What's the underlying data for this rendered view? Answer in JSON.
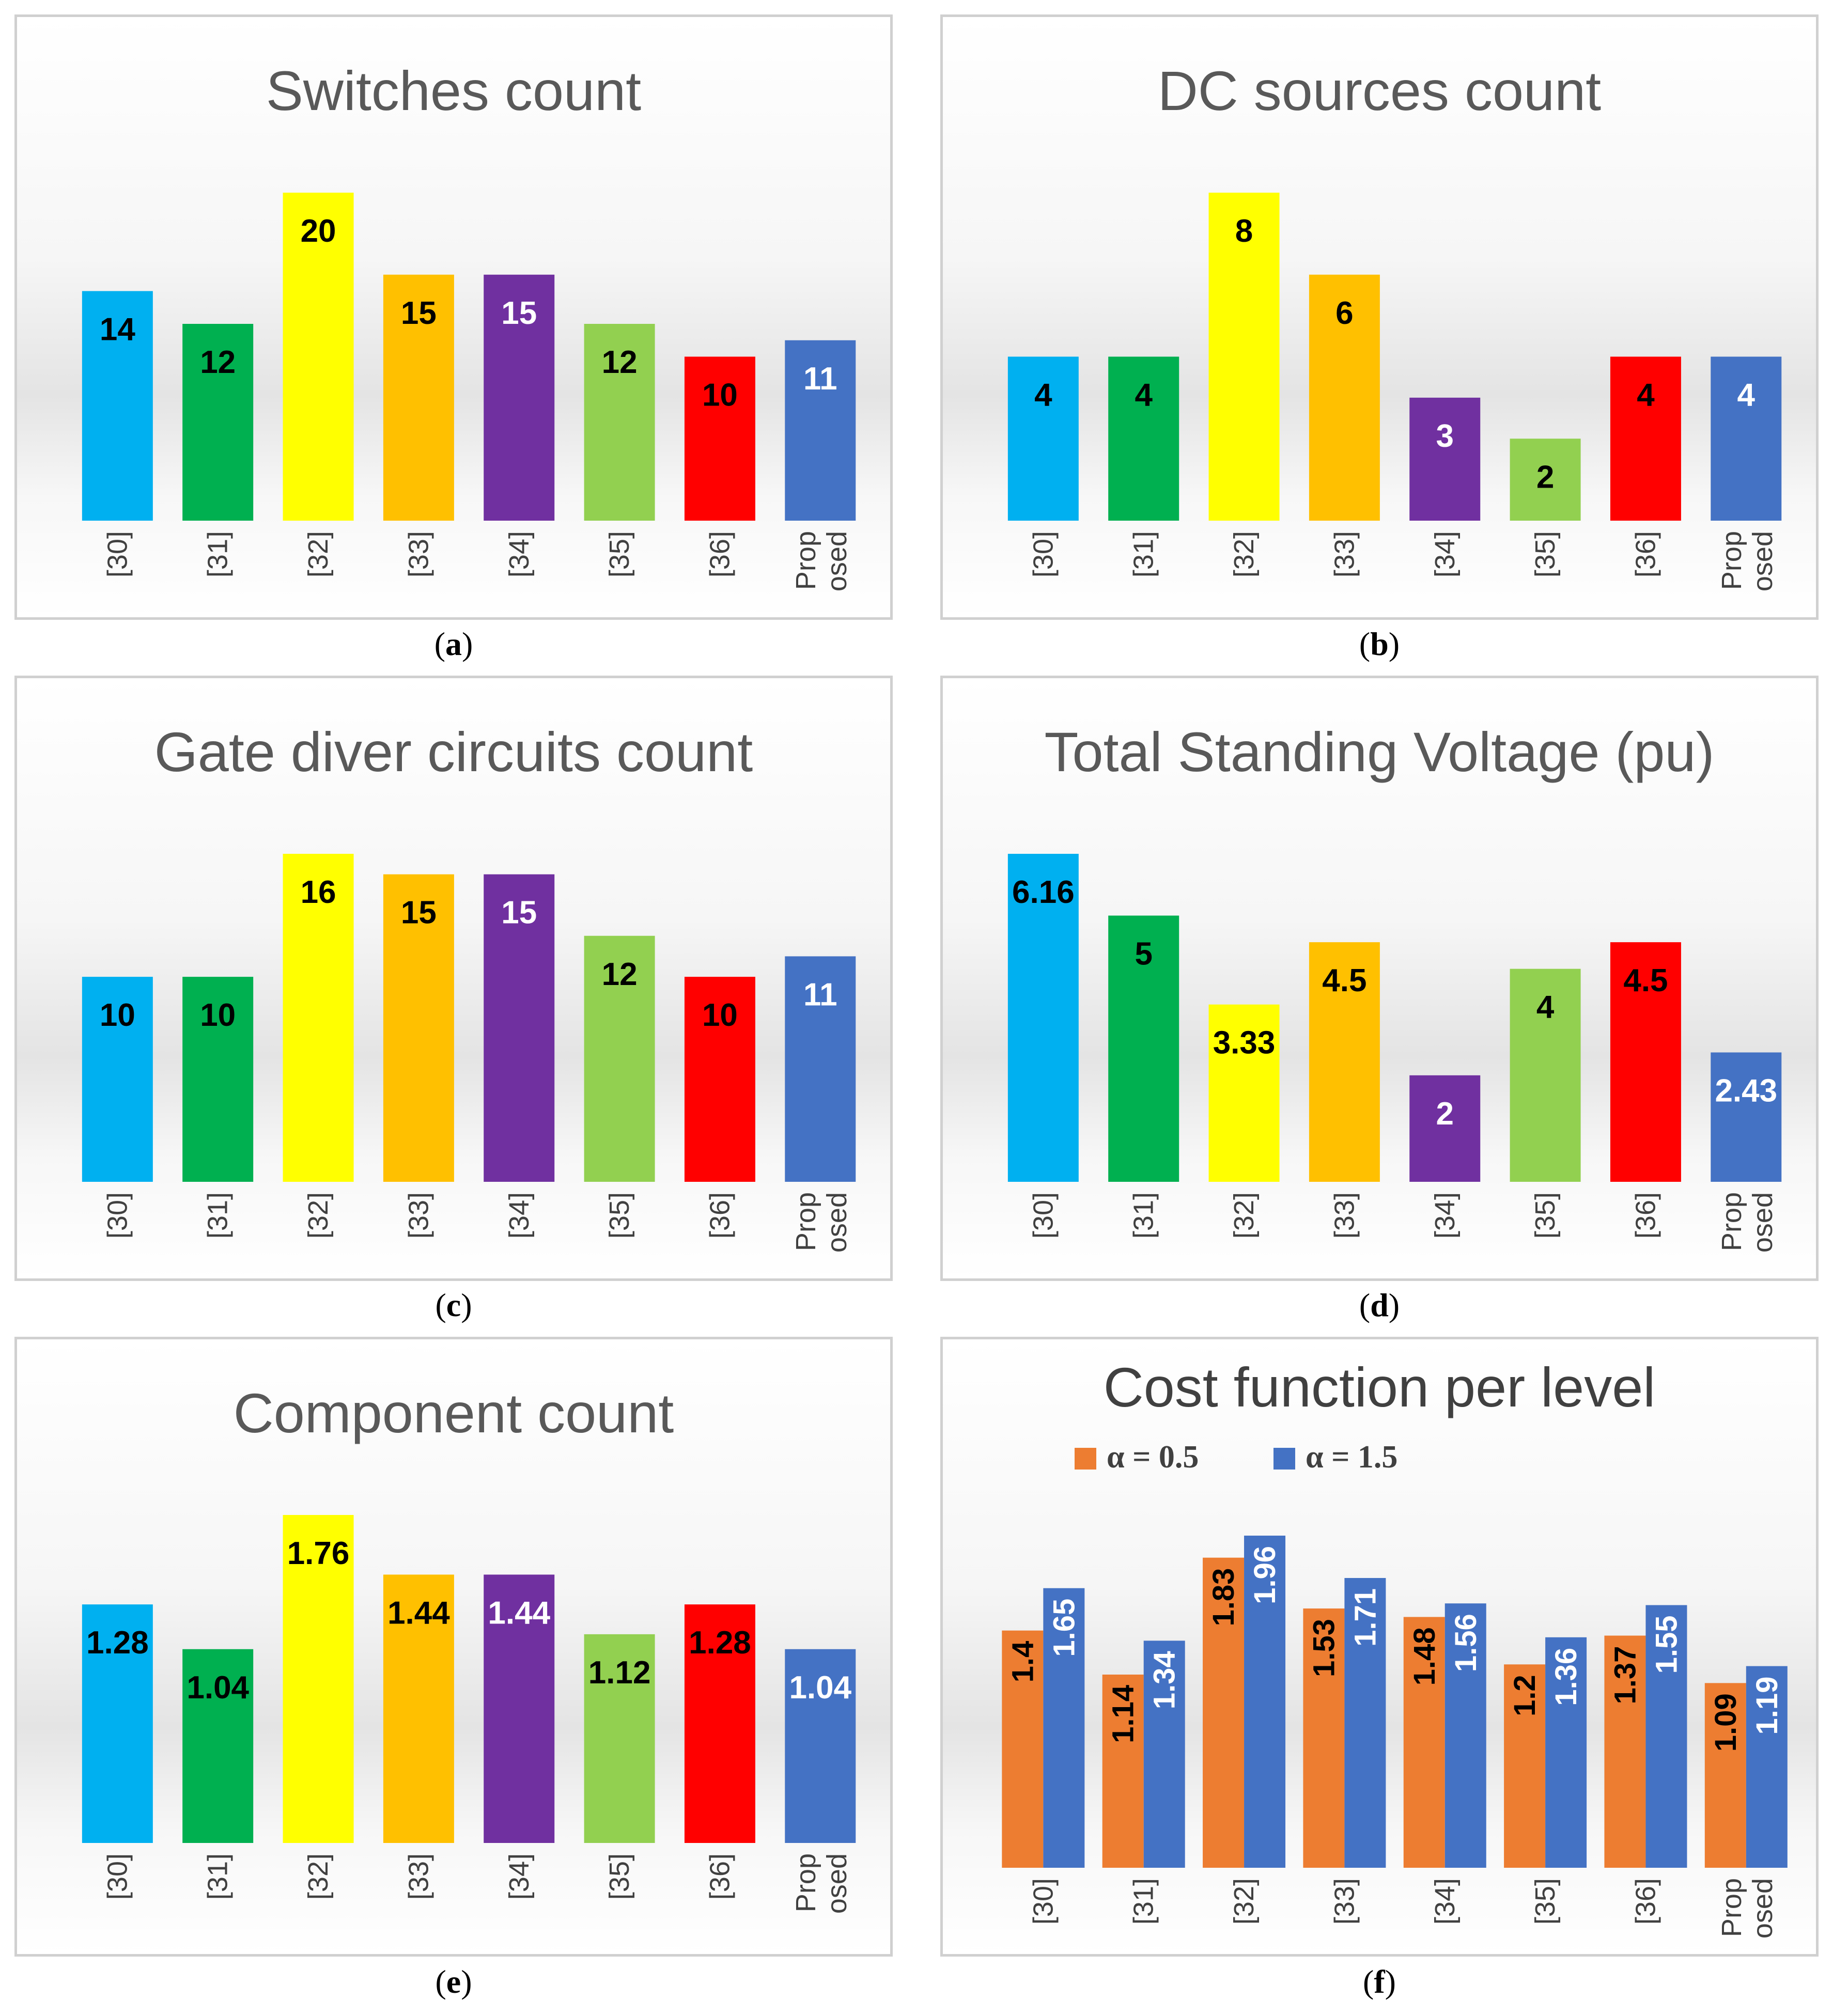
{
  "categories": [
    "[30]",
    "[31]",
    "[32]",
    "[33]",
    "[34]",
    "[35]",
    "[36]",
    "Prop osed"
  ],
  "colors": [
    "#00b0f0",
    "#00b050",
    "#ffff00",
    "#ffc000",
    "#7030a0",
    "#92d050",
    "#ff0000",
    "#4472c4"
  ],
  "chart_data": [
    {
      "id": "a",
      "type": "bar",
      "title": "Switches count",
      "caption": "a",
      "categories": [
        "[30]",
        "[31]",
        "[32]",
        "[33]",
        "[34]",
        "[35]",
        "[36]",
        "Prop osed"
      ],
      "values": [
        14,
        12,
        20,
        15,
        15,
        12,
        10,
        11
      ],
      "labels": [
        "14",
        "12",
        "20",
        "15",
        "15",
        "12",
        "10",
        "11"
      ],
      "ylim": [
        0,
        20
      ],
      "grid": false
    },
    {
      "id": "b",
      "type": "bar",
      "title": "DC sources count",
      "caption": "b",
      "categories": [
        "[30]",
        "[31]",
        "[32]",
        "[33]",
        "[34]",
        "[35]",
        "[36]",
        "Prop osed"
      ],
      "values": [
        4,
        4,
        8,
        6,
        3,
        2,
        4,
        4
      ],
      "labels": [
        "4",
        "4",
        "8",
        "6",
        "3",
        "2",
        "4",
        "4"
      ],
      "ylim": [
        0,
        8
      ],
      "grid": false
    },
    {
      "id": "c",
      "type": "bar",
      "title": "Gate diver circuits count",
      "caption": "c",
      "categories": [
        "[30]",
        "[31]",
        "[32]",
        "[33]",
        "[34]",
        "[35]",
        "[36]",
        "Prop osed"
      ],
      "values": [
        10,
        10,
        16,
        15,
        15,
        12,
        10,
        11
      ],
      "labels": [
        "10",
        "10",
        "16",
        "15",
        "15",
        "12",
        "10",
        "11"
      ],
      "ylim": [
        0,
        16
      ],
      "grid": false
    },
    {
      "id": "d",
      "type": "bar",
      "title": "Total Standing Voltage (pu)",
      "caption": "d",
      "categories": [
        "[30]",
        "[31]",
        "[32]",
        "[33]",
        "[34]",
        "[35]",
        "[36]",
        "Prop osed"
      ],
      "values": [
        6.16,
        5,
        3.33,
        4.5,
        2,
        4,
        4.5,
        2.43
      ],
      "labels": [
        "6.16",
        "5",
        "3.33",
        "4.5",
        "2",
        "4",
        "4.5",
        "2.43"
      ],
      "ylim": [
        0,
        6.16
      ],
      "grid": false
    },
    {
      "id": "e",
      "type": "bar",
      "title": "Component count",
      "caption": "e",
      "categories": [
        "[30]",
        "[31]",
        "[32]",
        "[33]",
        "[34]",
        "[35]",
        "[36]",
        "Prop osed"
      ],
      "values": [
        1.28,
        1.04,
        1.76,
        1.44,
        1.44,
        1.12,
        1.28,
        1.04
      ],
      "labels": [
        "1.28",
        "1.04",
        "1.76",
        "1.44",
        "1.44",
        "1.12",
        "1.28",
        "1.04"
      ],
      "ylim": [
        0,
        1.76
      ],
      "grid": false
    },
    {
      "id": "f",
      "type": "bar",
      "title": "Cost function per level",
      "caption": "f",
      "categories": [
        "[30]",
        "[31]",
        "[32]",
        "[33]",
        "[34]",
        "[35]",
        "[36]",
        "Prop osed"
      ],
      "series": [
        {
          "name": "α = 0.5",
          "color": "#ed7d31",
          "values": [
            1.4,
            1.14,
            1.83,
            1.53,
            1.48,
            1.2,
            1.37,
            1.09
          ],
          "labels": [
            "1.4",
            "1.14",
            "1.83",
            "1.53",
            "1.48",
            "1.2",
            "1.37",
            "1.09"
          ]
        },
        {
          "name": "α = 1.5",
          "color": "#4472c4",
          "values": [
            1.65,
            1.34,
            1.96,
            1.71,
            1.56,
            1.36,
            1.55,
            1.19
          ],
          "labels": [
            "1.65",
            "1.34",
            "1.96",
            "1.71",
            "1.56",
            "1.36",
            "1.55",
            "1.19"
          ]
        }
      ],
      "legend_position": "top-left",
      "ylim": [
        0,
        1.96
      ],
      "grid": false
    }
  ]
}
